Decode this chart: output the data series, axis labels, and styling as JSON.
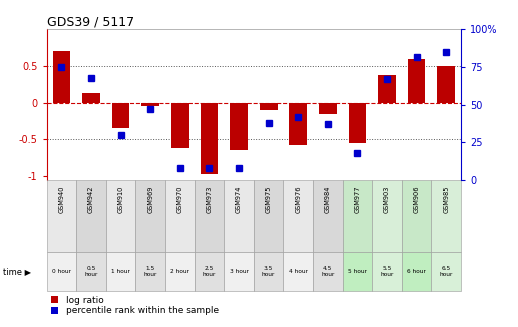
{
  "title": "GDS39 / 5117",
  "samples": [
    "GSM940",
    "GSM942",
    "GSM910",
    "GSM969",
    "GSM970",
    "GSM973",
    "GSM974",
    "GSM975",
    "GSM976",
    "GSM984",
    "GSM977",
    "GSM903",
    "GSM906",
    "GSM985"
  ],
  "times": [
    "0 hour",
    "0.5\nhour",
    "1 hour",
    "1.5\nhour",
    "2 hour",
    "2.5\nhour",
    "3 hour",
    "3.5\nhour",
    "4 hour",
    "4.5\nhour",
    "5 hour",
    "5.5\nhour",
    "6 hour",
    "6.5\nhour"
  ],
  "log_ratios": [
    0.7,
    0.13,
    -0.35,
    -0.05,
    -0.62,
    -0.97,
    -0.65,
    -0.1,
    -0.57,
    -0.15,
    -0.55,
    0.38,
    0.6,
    0.5
  ],
  "percentiles": [
    75,
    68,
    30,
    47,
    8,
    8,
    8,
    38,
    42,
    37,
    18,
    67,
    82,
    85
  ],
  "bar_color": "#bb0000",
  "dot_color": "#0000cc",
  "zero_line_color": "#cc0000",
  "dotted_line_color": "#555555",
  "ylim": [
    -1.05,
    1.0
  ],
  "y2lim": [
    0,
    100
  ],
  "y_ticks": [
    -1.0,
    -0.5,
    0.0,
    0.5
  ],
  "y2_ticks": [
    0,
    25,
    50,
    75,
    100
  ],
  "y_tick_labels": [
    "-1",
    "-0.5",
    "0",
    "0.5"
  ],
  "y2_tick_labels": [
    "0",
    "25",
    "50",
    "75",
    "100%"
  ],
  "left_axis_color": "#cc0000",
  "right_axis_color": "#0000cc",
  "bg_color": "#ffffff",
  "gsm_row_colors": [
    "#e8e8e8",
    "#d8d8d8",
    "#e8e8e8",
    "#d8d8d8",
    "#e8e8e8",
    "#d8d8d8",
    "#e8e8e8",
    "#d8d8d8",
    "#e8e8e8",
    "#d8d8d8",
    "#c8e8c8",
    "#d8eed8",
    "#c8e8c8",
    "#d8eed8"
  ],
  "time_row_colors": [
    "#f0f0f0",
    "#e0e0e0",
    "#f0f0f0",
    "#e0e0e0",
    "#f0f0f0",
    "#e0e0e0",
    "#f0f0f0",
    "#e0e0e0",
    "#f0f0f0",
    "#e0e0e0",
    "#c0eec0",
    "#d8f0d8",
    "#c0eec0",
    "#d8f0d8"
  ],
  "legend_log": "log ratio",
  "legend_pct": "percentile rank within the sample"
}
